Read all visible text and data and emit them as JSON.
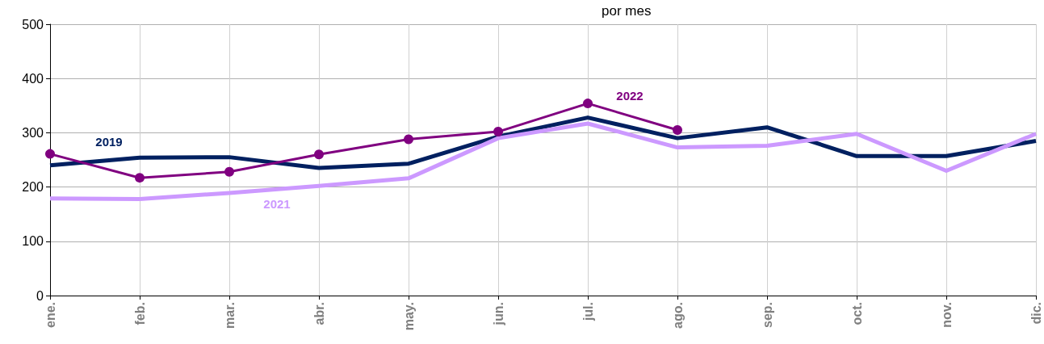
{
  "chart_data": {
    "type": "line",
    "title": "por mes",
    "categories": [
      "ene.",
      "feb.",
      "mar.",
      "abr.",
      "may.",
      "jun.",
      "jul.",
      "ago.",
      "sep.",
      "oct.",
      "nov.",
      "dic."
    ],
    "series": [
      {
        "name": "2019",
        "color": "#002060",
        "values": [
          240,
          254,
          255,
          235,
          243,
          293,
          328,
          290,
          310,
          257,
          257,
          285
        ]
      },
      {
        "name": "2021",
        "color": "#cc99ff",
        "values": [
          179,
          178,
          189,
          202,
          216,
          290,
          317,
          273,
          276,
          298,
          230,
          298
        ]
      },
      {
        "name": "2022",
        "color": "#800080",
        "marker": "circle",
        "values": [
          261,
          217,
          228,
          260,
          288,
          302,
          354,
          305,
          null,
          null,
          null,
          null
        ]
      }
    ],
    "ylim": [
      0,
      500
    ],
    "yticks": [
      0,
      100,
      200,
      300,
      400,
      500
    ],
    "grid": true,
    "legend": false,
    "marker": "none"
  }
}
